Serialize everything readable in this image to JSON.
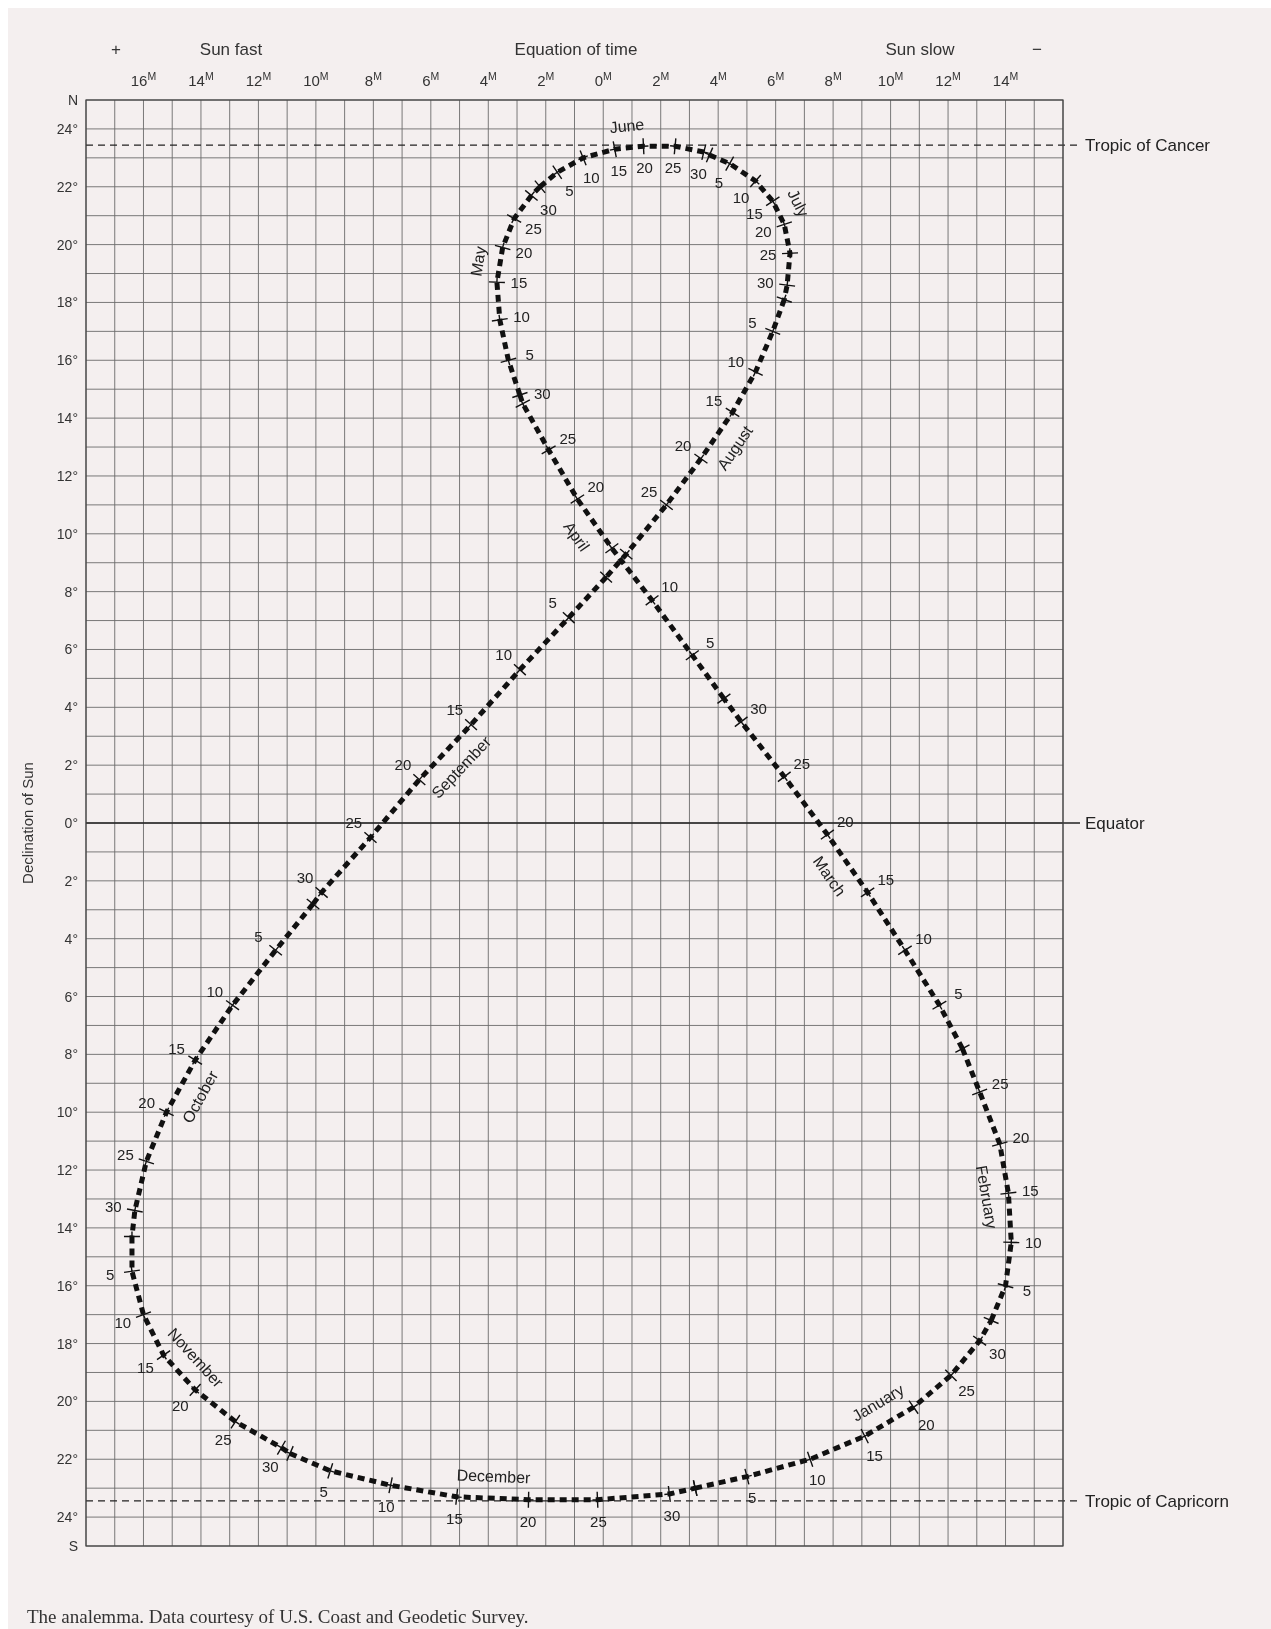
{
  "chart_data": {
    "type": "line",
    "xlabel": "Equation of time",
    "ylabel": "Declination of Sun",
    "xlim": [
      18,
      -16
    ],
    "xticks": [
      {
        "value": 18,
        "label": null
      },
      {
        "value": 17,
        "label": null
      },
      {
        "value": 16,
        "label": "16$^{M}$"
      },
      {
        "value": 15,
        "label": null
      },
      {
        "value": 14,
        "label": "14$^{M}$"
      },
      {
        "value": 13,
        "label": null
      },
      {
        "value": 12,
        "label": "12$^{M}$"
      },
      {
        "value": 11,
        "label": null
      },
      {
        "value": 10,
        "label": "10$^{M}$"
      },
      {
        "value": 9,
        "label": null
      },
      {
        "value": 8,
        "label": "8$^{M}$"
      },
      {
        "value": 7,
        "label": null
      },
      {
        "value": 6,
        "label": "6$^{M}$"
      },
      {
        "value": 5,
        "label": null
      },
      {
        "value": 4,
        "label": "4$^{M}$"
      },
      {
        "value": 3,
        "label": null
      },
      {
        "value": 2,
        "label": "2$^{M}$"
      },
      {
        "value": 1,
        "label": null
      },
      {
        "value": 0,
        "label": "0$^{M}$"
      },
      {
        "value": -1,
        "label": null
      },
      {
        "value": -2,
        "label": "2$^{M}$"
      },
      {
        "value": -3,
        "label": null
      },
      {
        "value": -4,
        "label": "4$^{M}$"
      },
      {
        "value": -5,
        "label": null
      },
      {
        "value": -6,
        "label": "6$^{M}$"
      },
      {
        "value": -7,
        "label": null
      },
      {
        "value": -8,
        "label": "8$^{M}$"
      },
      {
        "value": -9,
        "label": null
      },
      {
        "value": -10,
        "label": "10$^{M}$"
      },
      {
        "value": -11,
        "label": null
      },
      {
        "value": -12,
        "label": "12$^{M}$"
      },
      {
        "value": -13,
        "label": null
      },
      {
        "value": -14,
        "label": "14$^{M}$"
      },
      {
        "value": -15,
        "label": null
      },
      {
        "value": -16,
        "label": null
      }
    ],
    "ylim": [
      -25,
      25
    ],
    "yticks": [
      {
        "value": 25,
        "label": "N"
      },
      {
        "value": 24,
        "label": "24°"
      },
      {
        "value": 23,
        "label": null
      },
      {
        "value": 22,
        "label": "22°"
      },
      {
        "value": 21,
        "label": null
      },
      {
        "value": 20,
        "label": "20°"
      },
      {
        "value": 19,
        "label": null
      },
      {
        "value": 18,
        "label": "18°"
      },
      {
        "value": 17,
        "label": null
      },
      {
        "value": 16,
        "label": "16°"
      },
      {
        "value": 15,
        "label": null
      },
      {
        "value": 14,
        "label": "14°"
      },
      {
        "value": 13,
        "label": null
      },
      {
        "value": 12,
        "label": "12°"
      },
      {
        "value": 11,
        "label": null
      },
      {
        "value": 10,
        "label": "10°"
      },
      {
        "value": 9,
        "label": null
      },
      {
        "value": 8,
        "label": "8°"
      },
      {
        "value": 7,
        "label": null
      },
      {
        "value": 6,
        "label": "6°"
      },
      {
        "value": 5,
        "label": null
      },
      {
        "value": 4,
        "label": "4°"
      },
      {
        "value": 3,
        "label": null
      },
      {
        "value": 2,
        "label": "2°"
      },
      {
        "value": 1,
        "label": null
      },
      {
        "value": 0,
        "label": "0°"
      },
      {
        "value": -1,
        "label": null
      },
      {
        "value": -2,
        "label": "2°"
      },
      {
        "value": -3,
        "label": null
      },
      {
        "value": -4,
        "label": "4°"
      },
      {
        "value": -5,
        "label": null
      },
      {
        "value": -6,
        "label": "6°"
      },
      {
        "value": -7,
        "label": null
      },
      {
        "value": -8,
        "label": "8°"
      },
      {
        "value": -9,
        "label": null
      },
      {
        "value": -10,
        "label": "10°"
      },
      {
        "value": -11,
        "label": null
      },
      {
        "value": -12,
        "label": "12°"
      },
      {
        "value": -13,
        "label": null
      },
      {
        "value": -14,
        "label": "14°"
      },
      {
        "value": -15,
        "label": null
      },
      {
        "value": -16,
        "label": "16°"
      },
      {
        "value": -17,
        "label": null
      },
      {
        "value": -18,
        "label": "18°"
      },
      {
        "value": -19,
        "label": null
      },
      {
        "value": -20,
        "label": "20°"
      },
      {
        "value": -21,
        "label": null
      },
      {
        "value": -22,
        "label": "22°"
      },
      {
        "value": -23,
        "label": null
      },
      {
        "value": -24,
        "label": "24°"
      },
      {
        "value": -25,
        "label": "S"
      }
    ],
    "grid": true,
    "line_style": "dashed",
    "marker": "cross",
    "series": [
      {
        "name": "January",
        "color": "#111111",
        "x": [
          -3.2,
          -5.0,
          -7.2,
          -9.1,
          -10.8,
          -12.1,
          -13.1,
          -13.5
        ],
        "values": [
          -23.0,
          -22.6,
          -22.0,
          -21.2,
          -20.2,
          -19.1,
          -17.9,
          -17.2
        ]
      },
      {
        "name": "February",
        "color": "#111111",
        "x": [
          -13.5,
          -14.0,
          -14.2,
          -14.1,
          -13.8,
          -13.1,
          -12.5
        ],
        "values": [
          -17.2,
          -16.0,
          -14.5,
          -12.8,
          -11.1,
          -9.3,
          -7.8
        ]
      },
      {
        "name": "March",
        "color": "#111111",
        "x": [
          -12.5,
          -11.7,
          -10.5,
          -9.2,
          -7.8,
          -6.3,
          -4.8,
          -4.2
        ],
        "values": [
          -7.8,
          -6.3,
          -4.4,
          -2.4,
          -0.4,
          1.6,
          3.5,
          4.3
        ]
      },
      {
        "name": "April",
        "color": "#111111",
        "x": [
          -4.2,
          -3.1,
          -1.7,
          -0.3,
          0.9,
          1.9,
          2.8,
          2.9
        ],
        "values": [
          4.3,
          5.8,
          7.7,
          9.5,
          11.2,
          12.9,
          14.5,
          14.8
        ]
      },
      {
        "name": "May",
        "color": "#111111",
        "x": [
          2.9,
          3.3,
          3.6,
          3.7,
          3.5,
          3.1,
          2.5,
          2.2
        ],
        "values": [
          14.8,
          16.0,
          17.4,
          18.7,
          19.9,
          20.9,
          21.7,
          22.0
        ]
      },
      {
        "name": "June",
        "color": "#111111",
        "x": [
          2.2,
          1.6,
          0.7,
          -0.4,
          -1.4,
          -2.5,
          -3.5,
          -3.7
        ],
        "values": [
          22.0,
          22.5,
          23.0,
          23.3,
          23.4,
          23.4,
          23.2,
          23.1
        ]
      },
      {
        "name": "July",
        "color": "#111111",
        "x": [
          -3.7,
          -4.4,
          -5.3,
          -5.9,
          -6.3,
          -6.5,
          -6.4,
          -6.3
        ],
        "values": [
          23.1,
          22.8,
          22.2,
          21.5,
          20.7,
          19.7,
          18.6,
          18.1
        ]
      },
      {
        "name": "August",
        "color": "#111111",
        "x": [
          -6.3,
          -5.9,
          -5.3,
          -4.5,
          -3.4,
          -2.2,
          -0.8,
          -0.1
        ],
        "values": [
          18.1,
          17.0,
          15.6,
          14.2,
          12.6,
          11.0,
          9.3,
          8.5
        ]
      },
      {
        "name": "September",
        "color": "#111111",
        "x": [
          -0.1,
          1.2,
          2.9,
          4.6,
          6.4,
          8.1,
          9.8,
          10.1
        ],
        "values": [
          8.5,
          7.1,
          5.3,
          3.4,
          1.5,
          -0.5,
          -2.4,
          -2.8
        ]
      },
      {
        "name": "October",
        "color": "#111111",
        "x": [
          10.1,
          11.4,
          12.9,
          14.2,
          15.2,
          15.9,
          16.3,
          16.4
        ],
        "values": [
          -2.8,
          -4.4,
          -6.3,
          -8.2,
          -10.0,
          -11.7,
          -13.4,
          -14.3
        ]
      },
      {
        "name": "November",
        "color": "#111111",
        "x": [
          16.4,
          16.4,
          16.0,
          15.3,
          14.2,
          12.8,
          11.2,
          10.9
        ],
        "values": [
          -14.3,
          -15.5,
          -17.0,
          -18.4,
          -19.6,
          -20.7,
          -21.6,
          -21.8
        ]
      },
      {
        "name": "December",
        "color": "#111111",
        "x": [
          10.9,
          9.5,
          7.4,
          5.1,
          2.6,
          0.2,
          -2.3,
          -3.2
        ],
        "values": [
          -21.8,
          -22.4,
          -22.9,
          -23.3,
          -23.4,
          -23.4,
          -23.2,
          -23.0
        ]
      }
    ],
    "ref_lines": [
      {
        "axis": "y",
        "value": 23.44,
        "label": "Tropic of Cancer",
        "line_style": "dashed"
      },
      {
        "axis": "y",
        "value": 0,
        "label": "Equator",
        "line_style": "solid"
      },
      {
        "axis": "y",
        "value": -23.44,
        "label": "Tropic of Capricorn",
        "line_style": "dashed"
      }
    ],
    "annotations": [
      "+",
      "Sun fast",
      "Sun slow",
      "−",
      "The analemma. Data courtesy of U.S. Coast and Geodetic Survey.",
      {
        "text": "5",
        "x": -5.0,
        "y": -22.6
      },
      {
        "text": "10",
        "x": -7.2,
        "y": -22.0
      },
      {
        "text": "15",
        "x": -9.1,
        "y": -21.2
      },
      {
        "text": "20",
        "x": -10.8,
        "y": -20.2
      },
      {
        "text": "25",
        "x": -12.1,
        "y": -19.1
      },
      {
        "text": "30",
        "x": -13.1,
        "y": -17.9
      },
      {
        "text": "5",
        "x": -14.0,
        "y": -16.0
      },
      {
        "text": "10",
        "x": -14.2,
        "y": -14.5
      },
      {
        "text": "15",
        "x": -14.1,
        "y": -12.8
      },
      {
        "text": "20",
        "x": -13.8,
        "y": -11.1
      },
      {
        "text": "25",
        "x": -13.1,
        "y": -9.3
      },
      {
        "text": "5",
        "x": -11.7,
        "y": -6.3
      },
      {
        "text": "10",
        "x": -10.5,
        "y": -4.4
      },
      {
        "text": "15",
        "x": -9.2,
        "y": -2.4
      },
      {
        "text": "20",
        "x": -7.8,
        "y": -0.4
      },
      {
        "text": "25",
        "x": -6.3,
        "y": 1.6
      },
      {
        "text": "30",
        "x": -4.8,
        "y": 3.5
      },
      {
        "text": "5",
        "x": -3.1,
        "y": 5.8
      },
      {
        "text": "10",
        "x": -1.7,
        "y": 7.7
      },
      {
        "text": "20",
        "x": 0.9,
        "y": 11.2
      },
      {
        "text": "25",
        "x": 1.9,
        "y": 12.9
      },
      {
        "text": "30",
        "x": 2.8,
        "y": 14.5
      },
      {
        "text": "5",
        "x": 3.3,
        "y": 16.0
      },
      {
        "text": "10",
        "x": 3.6,
        "y": 17.4
      },
      {
        "text": "15",
        "x": 3.7,
        "y": 18.7
      },
      {
        "text": "20",
        "x": 3.5,
        "y": 19.9
      },
      {
        "text": "25",
        "x": 3.1,
        "y": 20.9
      },
      {
        "text": "30",
        "x": 2.5,
        "y": 21.7
      },
      {
        "text": "5",
        "x": 1.6,
        "y": 22.5
      },
      {
        "text": "10",
        "x": 0.7,
        "y": 23.0
      },
      {
        "text": "15",
        "x": -0.4,
        "y": 23.3
      },
      {
        "text": "20",
        "x": -1.4,
        "y": 23.4
      },
      {
        "text": "25",
        "x": -2.5,
        "y": 23.4
      },
      {
        "text": "30",
        "x": -3.5,
        "y": 23.2
      },
      {
        "text": "5",
        "x": -4.4,
        "y": 22.8
      },
      {
        "text": "10",
        "x": -5.3,
        "y": 22.2
      },
      {
        "text": "15",
        "x": -5.9,
        "y": 21.5
      },
      {
        "text": "20",
        "x": -6.3,
        "y": 20.7
      },
      {
        "text": "25",
        "x": -6.5,
        "y": 19.7
      },
      {
        "text": "30",
        "x": -6.4,
        "y": 18.6
      },
      {
        "text": "5",
        "x": -5.9,
        "y": 17.0
      },
      {
        "text": "10",
        "x": -5.3,
        "y": 15.6
      },
      {
        "text": "15",
        "x": -4.5,
        "y": 14.2
      },
      {
        "text": "20",
        "x": -3.4,
        "y": 12.6
      },
      {
        "text": "25",
        "x": -2.2,
        "y": 11.0
      },
      {
        "text": "5",
        "x": 1.2,
        "y": 7.1
      },
      {
        "text": "10",
        "x": 2.9,
        "y": 5.3
      },
      {
        "text": "15",
        "x": 4.6,
        "y": 3.4
      },
      {
        "text": "20",
        "x": 6.4,
        "y": 1.5
      },
      {
        "text": "25",
        "x": 8.1,
        "y": -0.5
      },
      {
        "text": "30",
        "x": 9.8,
        "y": -2.4
      },
      {
        "text": "5",
        "x": 11.4,
        "y": -4.4
      },
      {
        "text": "10",
        "x": 12.9,
        "y": -6.3
      },
      {
        "text": "15",
        "x": 14.2,
        "y": -8.2
      },
      {
        "text": "20",
        "x": 15.2,
        "y": -10.0
      },
      {
        "text": "25",
        "x": 15.9,
        "y": -11.7
      },
      {
        "text": "30",
        "x": 16.3,
        "y": -13.4
      },
      {
        "text": "5",
        "x": 16.4,
        "y": -15.5
      },
      {
        "text": "10",
        "x": 16.0,
        "y": -17.0
      },
      {
        "text": "15",
        "x": 15.3,
        "y": -18.4
      },
      {
        "text": "20",
        "x": 14.2,
        "y": -19.6
      },
      {
        "text": "25",
        "x": 12.8,
        "y": -20.7
      },
      {
        "text": "30",
        "x": 11.2,
        "y": -21.6
      },
      {
        "text": "5",
        "x": 9.5,
        "y": -22.4
      },
      {
        "text": "10",
        "x": 7.4,
        "y": -22.9
      },
      {
        "text": "15",
        "x": 5.1,
        "y": -23.3
      },
      {
        "text": "20",
        "x": 2.6,
        "y": -23.4
      },
      {
        "text": "25",
        "x": 0.2,
        "y": -23.4
      },
      {
        "text": "30",
        "x": -2.3,
        "y": -23.2
      }
    ]
  }
}
